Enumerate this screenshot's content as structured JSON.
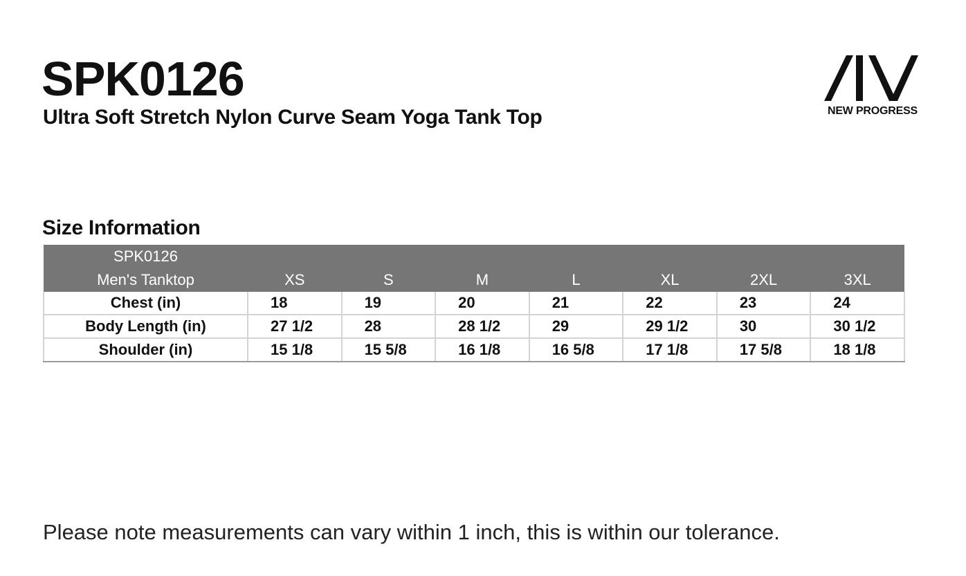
{
  "header": {
    "product_code": "SPK0126",
    "product_title": "Ultra Soft Stretch Nylon Curve Seam Yoga Tank Top"
  },
  "brand": {
    "logo_icon": "aiv-logo-mark",
    "name": "NEW PROGRESS"
  },
  "size_section": {
    "title": "Size Information",
    "table": {
      "header_label_line1": "SPK0126",
      "header_label_line2": "Men's Tanktop",
      "sizes": [
        "XS",
        "S",
        "M",
        "L",
        "XL",
        "2XL",
        "3XL"
      ],
      "rows": [
        {
          "label": "Chest (in)",
          "values": [
            "18",
            "19",
            "20",
            "21",
            "22",
            "23",
            "24"
          ]
        },
        {
          "label": "Body Length (in)",
          "values": [
            "27 1/2",
            "28",
            "28 1/2",
            "29",
            "29 1/2",
            "30",
            "30 1/2"
          ]
        },
        {
          "label": "Shoulder (in)",
          "values": [
            "15 1/8",
            "15 5/8",
            "16 1/8",
            "16 5/8",
            "17 1/8",
            "17 5/8",
            "18 1/8"
          ]
        }
      ]
    }
  },
  "footer": {
    "note": "Please note measurements can vary within 1 inch, this is within our tolerance."
  },
  "colors": {
    "header_bg": "#767676",
    "header_text": "#ffffff",
    "text": "#111111",
    "border": "#d4d4d4"
  }
}
